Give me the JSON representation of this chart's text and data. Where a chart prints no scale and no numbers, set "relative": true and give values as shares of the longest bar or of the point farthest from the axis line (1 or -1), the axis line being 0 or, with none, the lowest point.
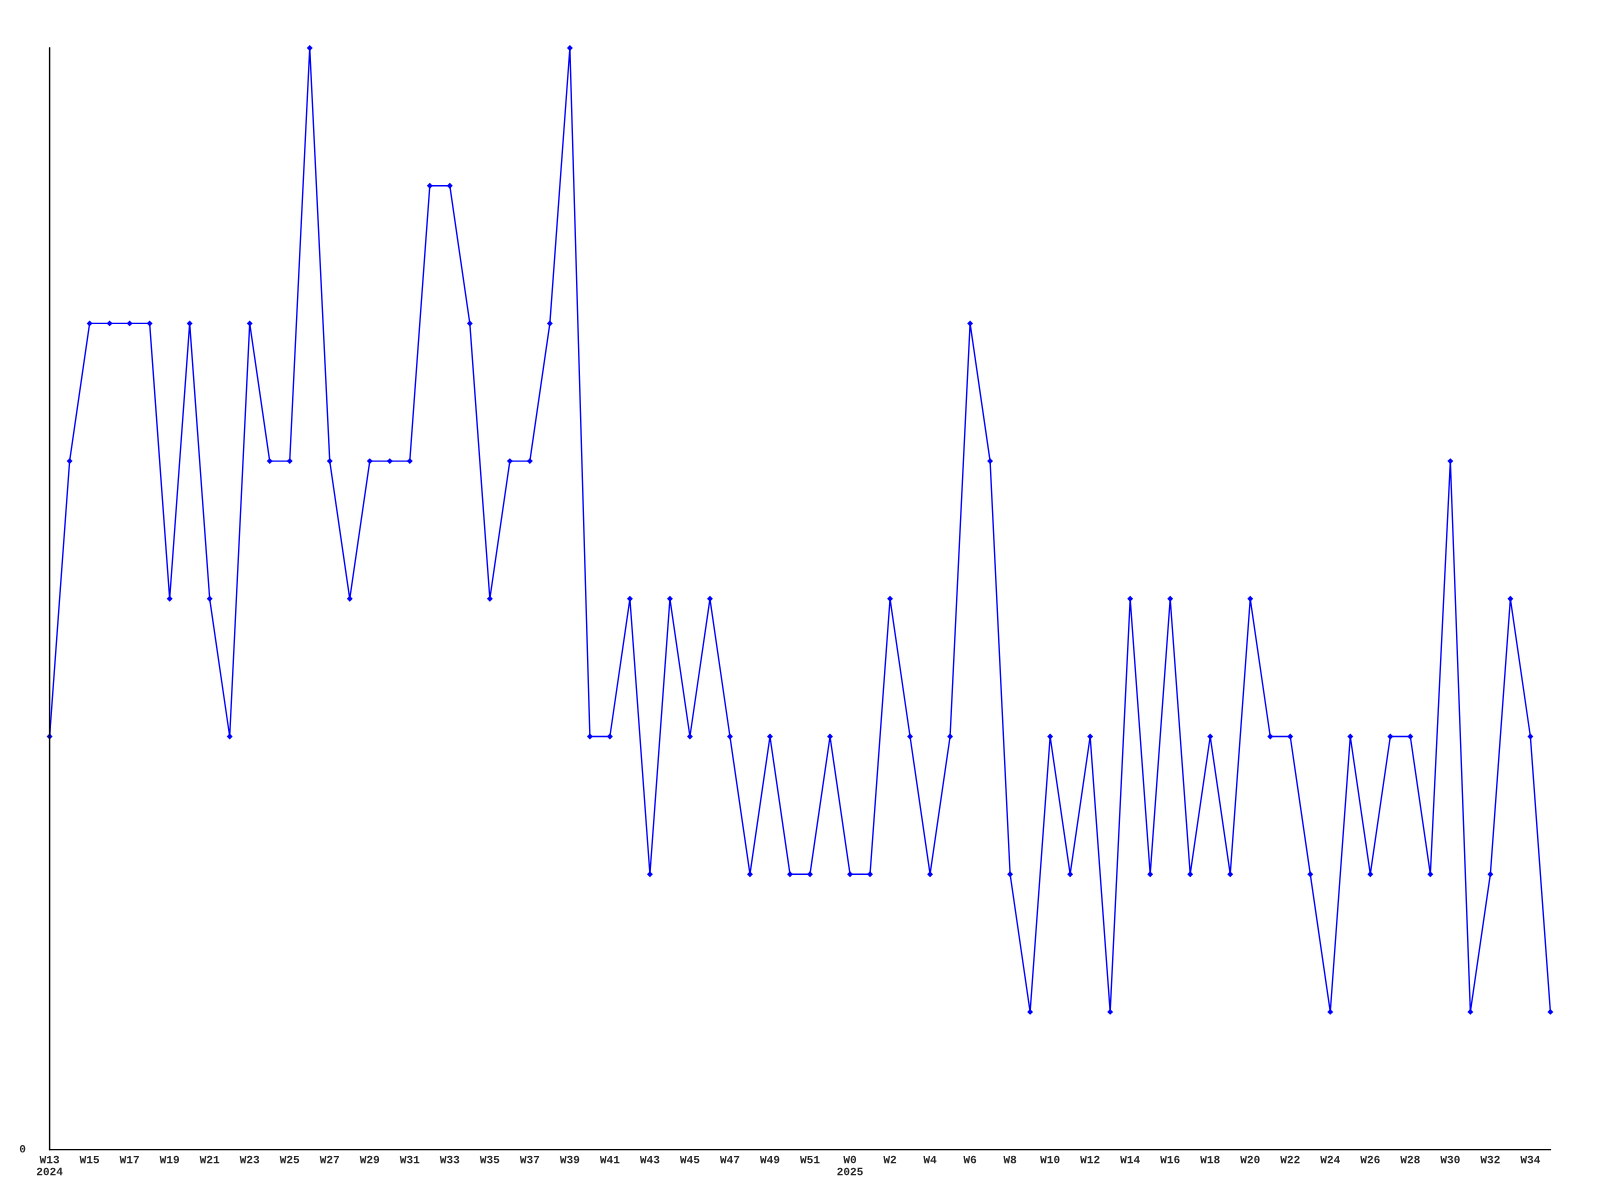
{
  "chart_data": {
    "type": "line",
    "relative": true,
    "categories": [
      "W13\n2024",
      null,
      "W15",
      null,
      "W17",
      null,
      "W19",
      null,
      "W21",
      null,
      "W23",
      null,
      "W25",
      null,
      "W27",
      null,
      "W29",
      null,
      "W31",
      null,
      "W33",
      null,
      "W35",
      null,
      "W37",
      null,
      "W39",
      null,
      "W41",
      null,
      "W43",
      null,
      "W45",
      null,
      "W47",
      null,
      "W49",
      null,
      "W51",
      null,
      "W0\n2025",
      null,
      "W2",
      null,
      "W4",
      null,
      "W6",
      null,
      "W8",
      null,
      "W10",
      null,
      "W12",
      null,
      "W14",
      null,
      "W16",
      null,
      "W18",
      null,
      "W20",
      null,
      "W22",
      null,
      "W24",
      null,
      "W26",
      null,
      "W28",
      null,
      "W30",
      null,
      "W32",
      null,
      "W34",
      null
    ],
    "series": [
      {
        "color": "#0000ff",
        "values": [
          0.375,
          0.625,
          0.75,
          0.75,
          0.75,
          0.75,
          0.5,
          0.75,
          0.5,
          0.375,
          0.75,
          0.625,
          0.625,
          1,
          0.625,
          0.5,
          0.625,
          0.625,
          0.625,
          0.875,
          0.875,
          0.75,
          0.5,
          0.625,
          0.625,
          0.75,
          1,
          0.375,
          0.375,
          0.5,
          0.25,
          0.5,
          0.375,
          0.5,
          0.375,
          0.25,
          0.375,
          0.25,
          0.25,
          0.375,
          0.25,
          0.25,
          0.5,
          0.375,
          0.25,
          0.375,
          0.75,
          0.625,
          0.25,
          0.125,
          0.375,
          0.25,
          0.375,
          0.125,
          0.5,
          0.25,
          0.5,
          0.25,
          0.375,
          0.25,
          0.5,
          0.375,
          0.375,
          0.25,
          0.125,
          0.375,
          0.25,
          0.375,
          0.375,
          0.25,
          0.625,
          0.125,
          0.25,
          0.5,
          0.375,
          0.125
        ]
      }
    ],
    "marker": "diamond",
    "line_style": "solid",
    "grid": false,
    "legend": false,
    "annotations": [
      "0"
    ]
  }
}
